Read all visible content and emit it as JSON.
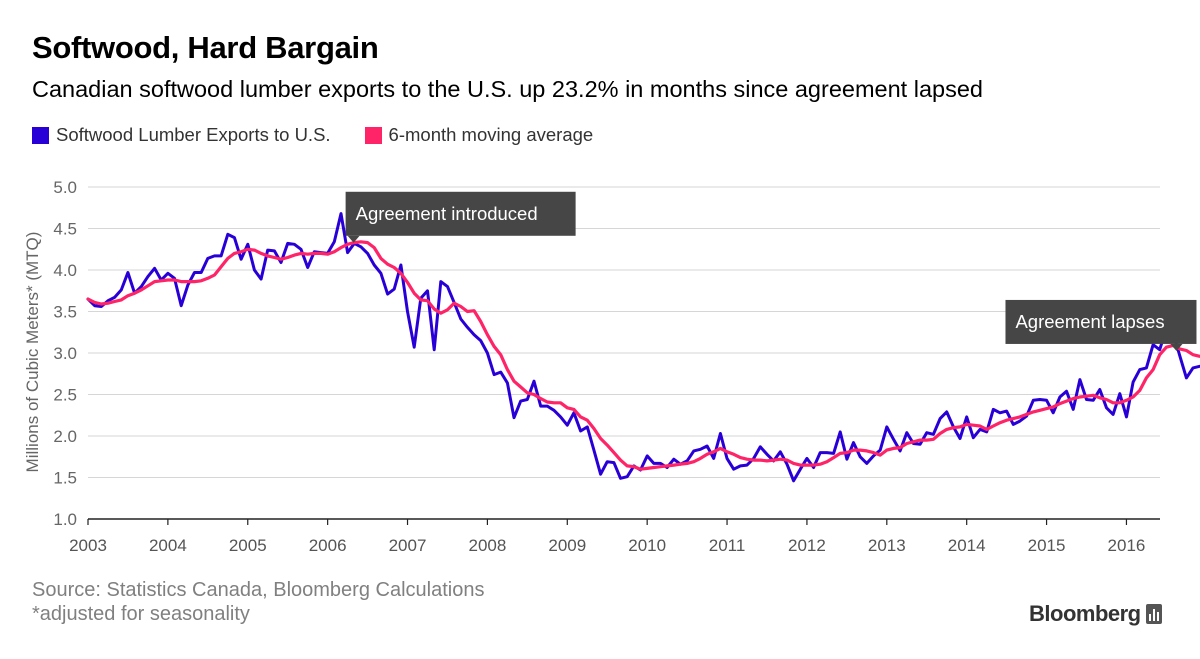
{
  "title": "Softwood, Hard Bargain",
  "subtitle": "Canadian softwood lumber exports to the U.S. up 23.2% in months since agreement lapsed",
  "legend": [
    {
      "label": "Softwood Lumber Exports to U.S.",
      "color": "#2800d7"
    },
    {
      "label": "6-month moving average",
      "color": "#ff2467"
    }
  ],
  "footer": {
    "source": "Source: Statistics Canada, Bloomberg Calculations",
    "note": "*adjusted for seasonality",
    "brand": "Bloomberg"
  },
  "chart_data": {
    "type": "line",
    "title": "Softwood, Hard Bargain",
    "subtitle": "Canadian softwood lumber exports to the U.S. up 23.2% in months since agreement lapsed",
    "xlabel": "",
    "ylabel": "Millions of Cubic Meters* (MTQ)",
    "x_start": "2003-01",
    "frequency": "monthly",
    "xlim": [
      2003,
      2016.42
    ],
    "ylim": [
      1.0,
      5.0
    ],
    "x_ticks": [
      "2003",
      "2004",
      "2005",
      "2006",
      "2007",
      "2008",
      "2009",
      "2010",
      "2011",
      "2012",
      "2013",
      "2014",
      "2015",
      "2016"
    ],
    "y_ticks": [
      "1.0",
      "1.5",
      "2.0",
      "2.5",
      "3.0",
      "3.5",
      "4.0",
      "4.5",
      "5.0"
    ],
    "grid": "horizontal",
    "legend_position": "top-left",
    "series": [
      {
        "name": "Softwood Lumber Exports to U.S.",
        "color": "#2800d7",
        "values": [
          3.65,
          3.57,
          3.56,
          3.63,
          3.67,
          3.76,
          3.97,
          3.72,
          3.8,
          3.92,
          4.02,
          3.88,
          3.96,
          3.9,
          3.57,
          3.82,
          3.97,
          3.97,
          4.14,
          4.17,
          4.17,
          4.43,
          4.39,
          4.13,
          4.31,
          4.0,
          3.89,
          4.24,
          4.23,
          4.09,
          4.32,
          4.31,
          4.25,
          4.03,
          4.22,
          4.21,
          4.2,
          4.34,
          4.68,
          4.21,
          4.32,
          4.28,
          4.2,
          4.06,
          3.96,
          3.71,
          3.77,
          4.06,
          3.5,
          3.07,
          3.66,
          3.75,
          3.04,
          3.86,
          3.8,
          3.61,
          3.41,
          3.31,
          3.22,
          3.15,
          3.0,
          2.74,
          2.77,
          2.64,
          2.22,
          2.42,
          2.44,
          2.66,
          2.36,
          2.36,
          2.31,
          2.23,
          2.13,
          2.28,
          2.06,
          2.11,
          1.83,
          1.54,
          1.69,
          1.68,
          1.49,
          1.51,
          1.64,
          1.59,
          1.76,
          1.67,
          1.67,
          1.62,
          1.72,
          1.66,
          1.7,
          1.82,
          1.84,
          1.88,
          1.73,
          2.03,
          1.73,
          1.6,
          1.64,
          1.65,
          1.73,
          1.87,
          1.78,
          1.7,
          1.81,
          1.66,
          1.46,
          1.6,
          1.73,
          1.62,
          1.8,
          1.8,
          1.79,
          2.05,
          1.72,
          1.92,
          1.75,
          1.67,
          1.76,
          1.83,
          2.11,
          1.96,
          1.82,
          2.04,
          1.91,
          1.9,
          2.04,
          2.02,
          2.21,
          2.29,
          2.11,
          1.97,
          2.23,
          1.98,
          2.08,
          2.05,
          2.32,
          2.28,
          2.3,
          2.14,
          2.18,
          2.24,
          2.43,
          2.44,
          2.43,
          2.28,
          2.47,
          2.54,
          2.32,
          2.68,
          2.44,
          2.43,
          2.56,
          2.34,
          2.26,
          2.51,
          2.23,
          2.65,
          2.8,
          2.82,
          3.1,
          3.04,
          3.3,
          3.25,
          2.97,
          2.7,
          2.82,
          2.84
        ]
      },
      {
        "name": "6-month moving average",
        "color": "#ff2467",
        "values": [
          3.65,
          3.61,
          3.59,
          3.6,
          3.62,
          3.64,
          3.69,
          3.72,
          3.76,
          3.81,
          3.86,
          3.87,
          3.88,
          3.88,
          3.86,
          3.86,
          3.86,
          3.87,
          3.9,
          3.94,
          4.04,
          4.14,
          4.2,
          4.22,
          4.25,
          4.24,
          4.2,
          4.17,
          4.15,
          4.13,
          4.15,
          4.18,
          4.2,
          4.19,
          4.2,
          4.2,
          4.19,
          4.22,
          4.27,
          4.31,
          4.33,
          4.34,
          4.33,
          4.27,
          4.14,
          4.07,
          4.03,
          3.96,
          3.85,
          3.72,
          3.64,
          3.63,
          3.53,
          3.48,
          3.52,
          3.6,
          3.56,
          3.5,
          3.51,
          3.38,
          3.22,
          3.08,
          2.98,
          2.8,
          2.66,
          2.59,
          2.52,
          2.5,
          2.45,
          2.41,
          2.4,
          2.4,
          2.34,
          2.32,
          2.23,
          2.19,
          2.09,
          1.97,
          1.89,
          1.8,
          1.71,
          1.64,
          1.63,
          1.6,
          1.61,
          1.62,
          1.63,
          1.64,
          1.65,
          1.66,
          1.67,
          1.69,
          1.73,
          1.78,
          1.81,
          1.85,
          1.81,
          1.78,
          1.74,
          1.72,
          1.71,
          1.71,
          1.7,
          1.71,
          1.72,
          1.71,
          1.67,
          1.65,
          1.65,
          1.65,
          1.66,
          1.69,
          1.74,
          1.79,
          1.8,
          1.83,
          1.83,
          1.82,
          1.8,
          1.77,
          1.83,
          1.85,
          1.86,
          1.91,
          1.93,
          1.95,
          1.95,
          1.96,
          2.03,
          2.08,
          2.1,
          2.11,
          2.14,
          2.13,
          2.12,
          2.08,
          2.12,
          2.16,
          2.19,
          2.21,
          2.23,
          2.26,
          2.29,
          2.31,
          2.33,
          2.35,
          2.39,
          2.42,
          2.45,
          2.47,
          2.48,
          2.49,
          2.46,
          2.44,
          2.4,
          2.4,
          2.43,
          2.47,
          2.55,
          2.7,
          2.8,
          2.98,
          3.07,
          3.09,
          3.05,
          3.03,
          2.98,
          2.96
        ]
      }
    ],
    "annotations": [
      {
        "text": "Agreement introduced",
        "x": "2006-04",
        "y": 4.34
      },
      {
        "text": "Agreement lapses",
        "x": "2015-10",
        "y": 2.82
      }
    ]
  }
}
